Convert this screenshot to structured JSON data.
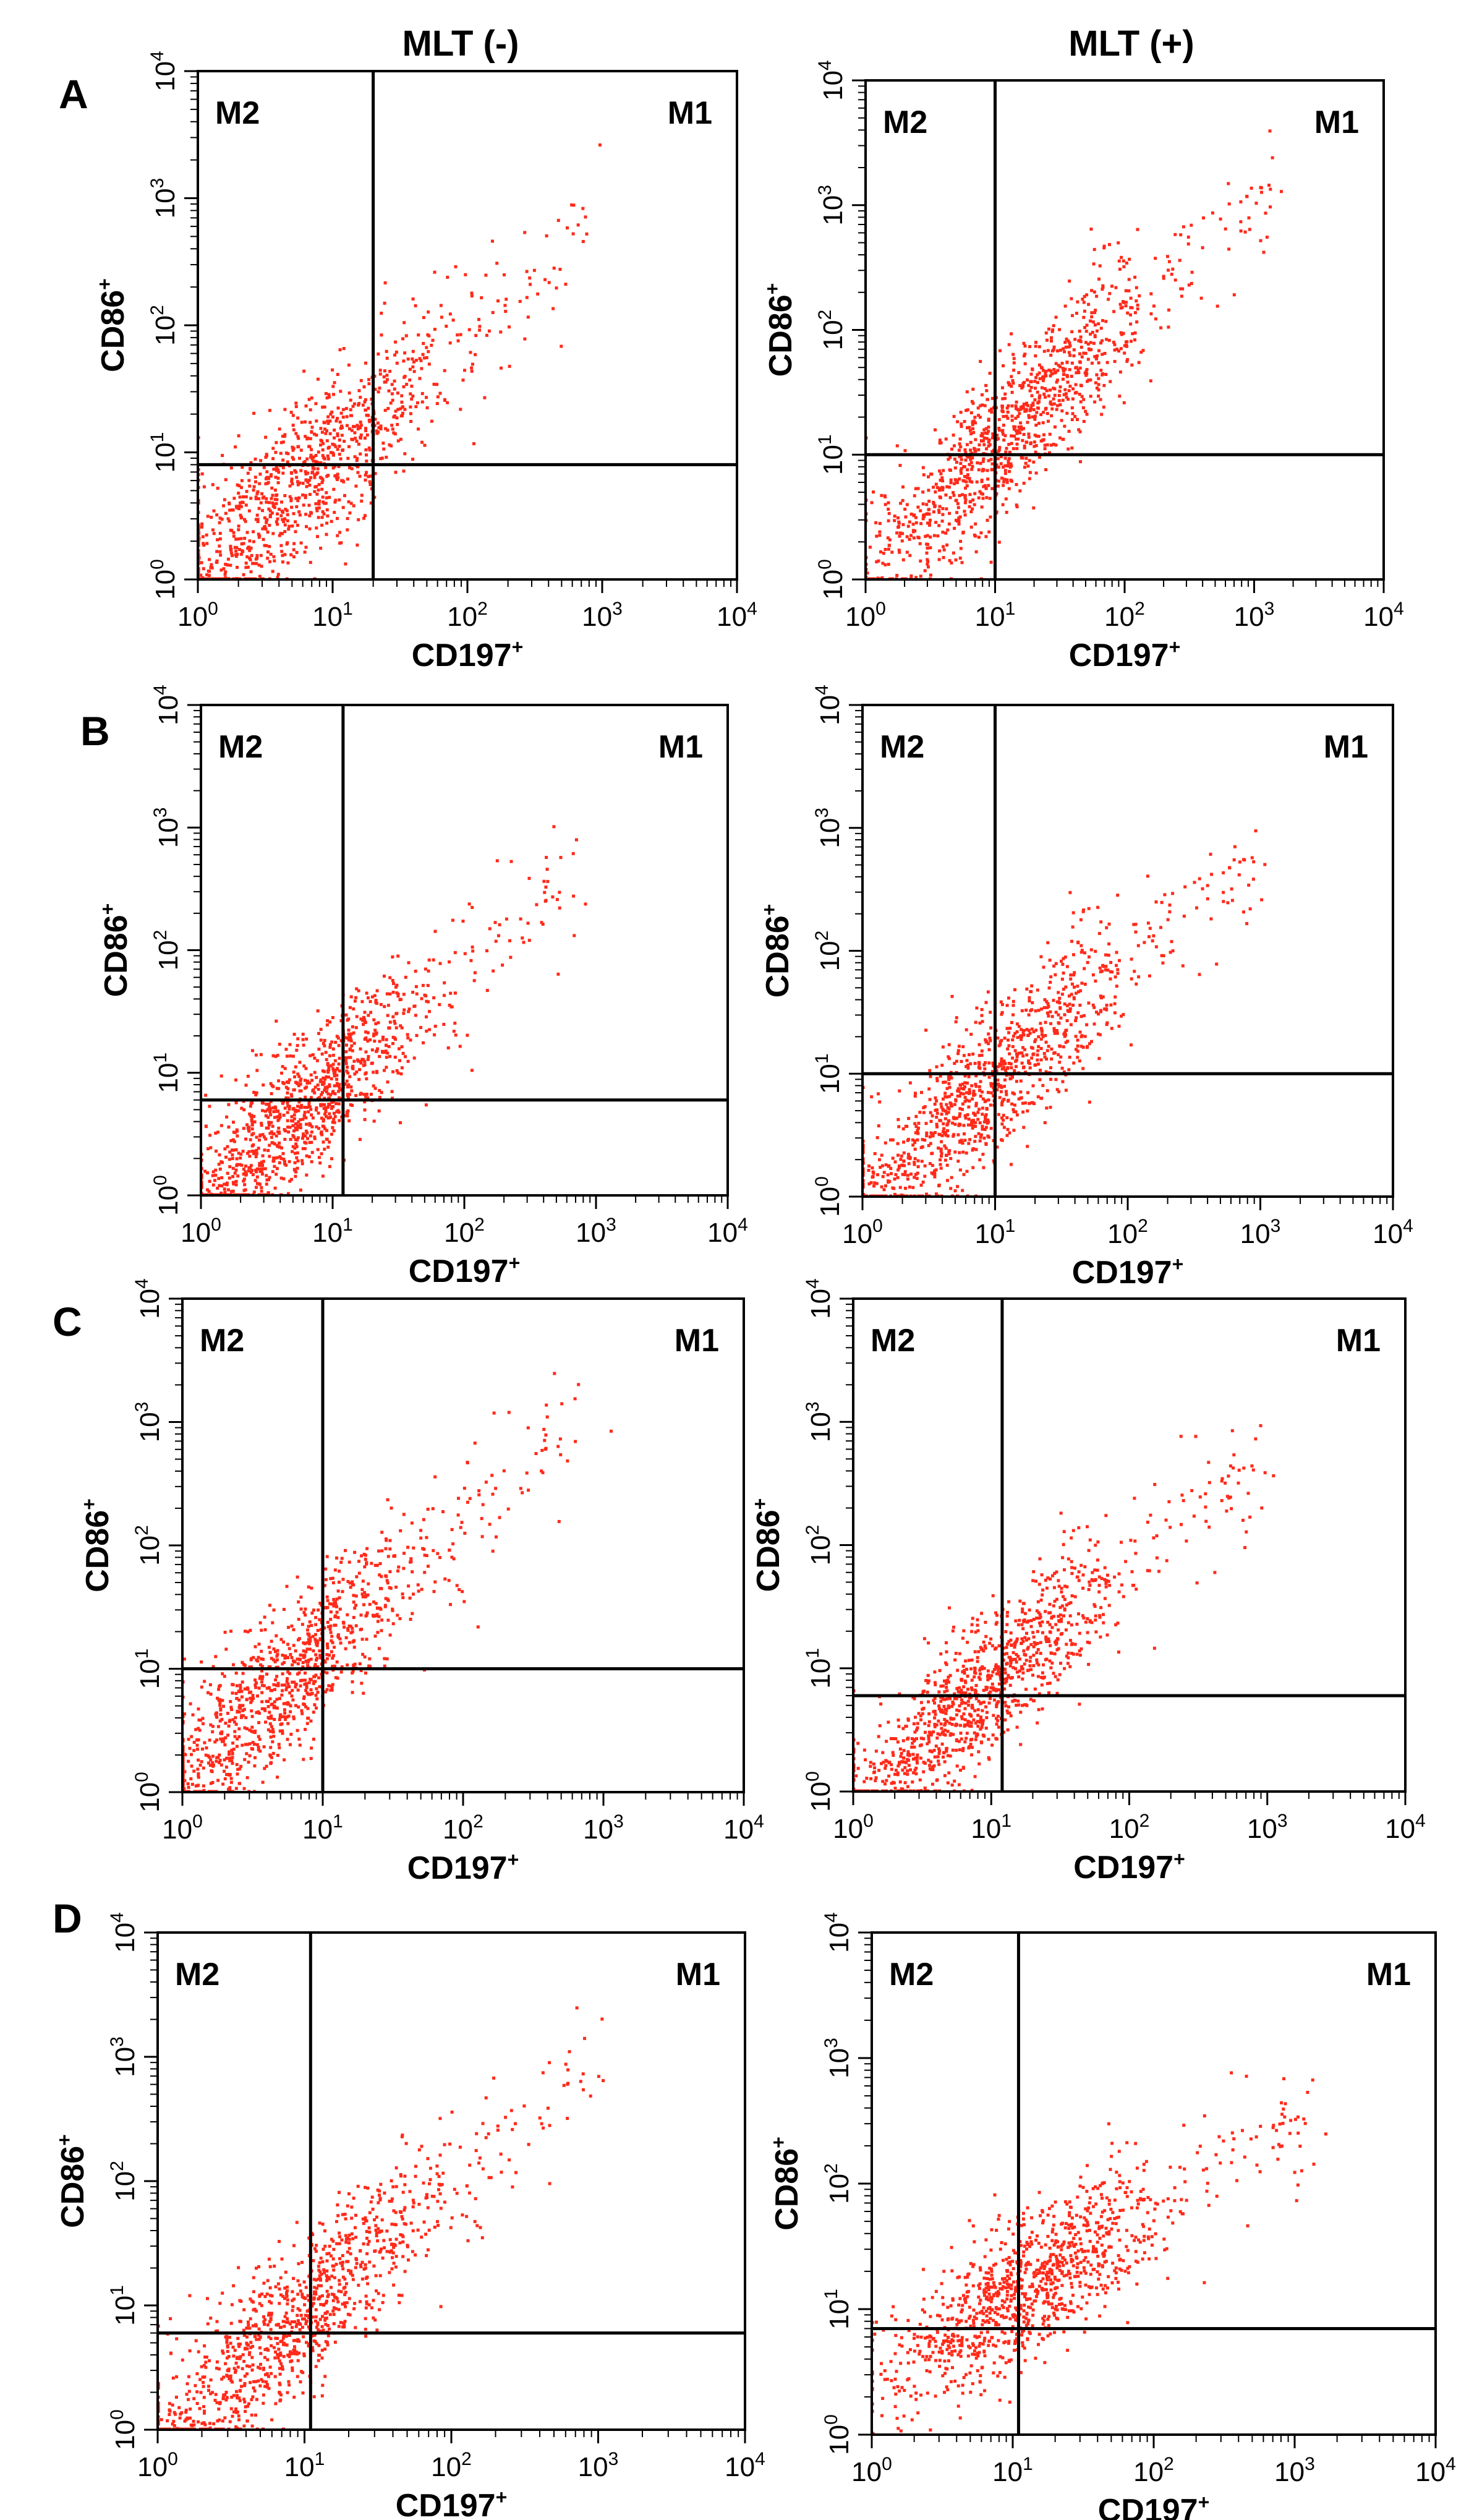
{
  "figure": {
    "column_titles": [
      "MLT (-)",
      "MLT (+)"
    ],
    "row_labels": [
      "A",
      "B",
      "C",
      "D"
    ],
    "accent_color": "#ff2a1a"
  },
  "chart_data": [
    {
      "panel": "A-left",
      "row": "A",
      "condition": "MLT (-)",
      "type": "scatter",
      "xscale": "log",
      "yscale": "log",
      "xlabel": "CD197",
      "ylabel": "CD86",
      "label_superscript": "+",
      "xlim": [
        1,
        10000
      ],
      "ylim": [
        1,
        10000
      ],
      "xticks": [
        1,
        10,
        100,
        1000,
        10000
      ],
      "yticks": [
        1,
        10,
        100,
        1000,
        10000
      ],
      "quadrant_labels": [
        "M2",
        "M1"
      ],
      "x_gate": 20,
      "y_gate": 8,
      "cloud": {
        "center_x": 5,
        "center_y": 5,
        "spread_decades": 0.6,
        "slope": 0.9
      }
    },
    {
      "panel": "A-right",
      "row": "A",
      "condition": "MLT (+)",
      "type": "scatter",
      "xscale": "log",
      "yscale": "log",
      "xlabel": "CD197",
      "ylabel": "CD86",
      "label_superscript": "+",
      "xlim": [
        1,
        10000
      ],
      "ylim": [
        1,
        10000
      ],
      "xticks": [
        1,
        10,
        100,
        1000,
        10000
      ],
      "yticks": [
        1,
        10,
        100,
        1000,
        10000
      ],
      "quadrant_labels": [
        "M2",
        "M1"
      ],
      "x_gate": 10,
      "y_gate": 10,
      "cloud": {
        "center_x": 12,
        "center_y": 14,
        "spread_decades": 0.55,
        "slope": 1.0
      }
    },
    {
      "panel": "B-left",
      "row": "B",
      "condition": "MLT (-)",
      "type": "scatter",
      "xscale": "log",
      "yscale": "log",
      "xlabel": "CD197",
      "ylabel": "CD86",
      "label_superscript": "+",
      "xlim": [
        1,
        10000
      ],
      "ylim": [
        1,
        10000
      ],
      "xticks": [
        1,
        10,
        100,
        1000,
        10000
      ],
      "yticks": [
        1,
        10,
        100,
        1000,
        10000
      ],
      "quadrant_labels": [
        "M2",
        "M1"
      ],
      "x_gate": 12,
      "y_gate": 6,
      "cloud": {
        "center_x": 6,
        "center_y": 5,
        "spread_decades": 0.5,
        "slope": 0.9
      }
    },
    {
      "panel": "B-right",
      "row": "B",
      "condition": "MLT (+)",
      "type": "scatter",
      "xscale": "log",
      "yscale": "log",
      "xlabel": "CD197",
      "ylabel": "CD86",
      "label_superscript": "+",
      "xlim": [
        1,
        10000
      ],
      "ylim": [
        1,
        10000
      ],
      "xticks": [
        1,
        10,
        100,
        1000,
        10000
      ],
      "yticks": [
        1,
        10,
        100,
        1000,
        10000
      ],
      "quadrant_labels": [
        "M2",
        "M1"
      ],
      "x_gate": 10,
      "y_gate": 10,
      "cloud": {
        "center_x": 8,
        "center_y": 7,
        "spread_decades": 0.55,
        "slope": 0.95
      }
    },
    {
      "panel": "C-left",
      "row": "C",
      "condition": "MLT (-)",
      "type": "scatter",
      "xscale": "log",
      "yscale": "log",
      "xlabel": "CD197",
      "ylabel": "CD86",
      "label_superscript": "+",
      "xlim": [
        1,
        10000
      ],
      "ylim": [
        1,
        10000
      ],
      "xticks": [
        1,
        10,
        100,
        1000,
        10000
      ],
      "yticks": [
        1,
        10,
        100,
        1000,
        10000
      ],
      "quadrant_labels": [
        "M2",
        "M1"
      ],
      "x_gate": 10,
      "y_gate": 10,
      "cloud": {
        "center_x": 5,
        "center_y": 7,
        "spread_decades": 0.55,
        "slope": 1.0
      }
    },
    {
      "panel": "C-right",
      "row": "C",
      "condition": "MLT (+)",
      "type": "scatter",
      "xscale": "log",
      "yscale": "log",
      "xlabel": "CD197",
      "ylabel": "CD86",
      "label_superscript": "+",
      "xlim": [
        1,
        10000
      ],
      "ylim": [
        1,
        10000
      ],
      "xticks": [
        1,
        10,
        100,
        1000,
        10000
      ],
      "yticks": [
        1,
        10,
        100,
        1000,
        10000
      ],
      "quadrant_labels": [
        "M2",
        "M1"
      ],
      "x_gate": 12,
      "y_gate": 6,
      "cloud": {
        "center_x": 8,
        "center_y": 6,
        "spread_decades": 0.5,
        "slope": 0.95
      }
    },
    {
      "panel": "D-left",
      "row": "D",
      "condition": "MLT (-)",
      "type": "scatter",
      "xscale": "log",
      "yscale": "log",
      "xlabel": "CD197",
      "ylabel": "CD86",
      "label_superscript": "+",
      "xlim": [
        1,
        10000
      ],
      "ylim": [
        1,
        10000
      ],
      "xticks": [
        1,
        10,
        100,
        1000,
        10000
      ],
      "yticks": [
        1,
        10,
        100,
        1000,
        10000
      ],
      "quadrant_labels": [
        "M2",
        "M1"
      ],
      "x_gate": 11,
      "y_gate": 6,
      "cloud": {
        "center_x": 8,
        "center_y": 7,
        "spread_decades": 0.55,
        "slope": 1.0
      }
    },
    {
      "panel": "D-right",
      "row": "D",
      "condition": "MLT (+)",
      "type": "scatter",
      "xscale": "log",
      "yscale": "log",
      "xlabel": "CD197",
      "ylabel": "CD86",
      "label_superscript": "+",
      "xlim": [
        1,
        10000
      ],
      "ylim": [
        1,
        10000
      ],
      "xticks": [
        1,
        10,
        100,
        1000,
        10000
      ],
      "yticks": [
        1,
        10,
        100,
        1000,
        10000
      ],
      "quadrant_labels": [
        "M2",
        "M1"
      ],
      "x_gate": 11,
      "y_gate": 7,
      "cloud": {
        "center_x": 12,
        "center_y": 14,
        "spread_decades": 0.5,
        "slope": 0.7
      }
    }
  ]
}
